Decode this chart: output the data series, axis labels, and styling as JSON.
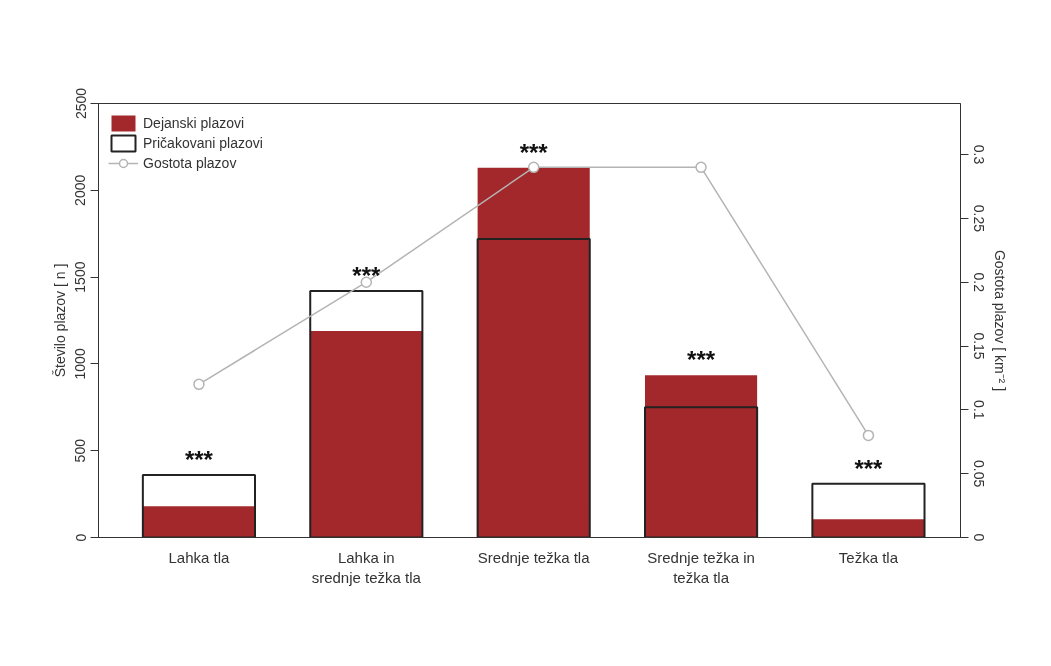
{
  "chart_data": {
    "type": "bar",
    "xlabel": null,
    "ylabel": "Število plazov [ n ]",
    "y2label": "Gostota plazov [ km⁻² ]",
    "categories": [
      "Lahka tla",
      "Lahka in\nsrednje težka tla",
      "Srednje težka tla",
      "Srednje težka in\ntežka tla",
      "Težka tla"
    ],
    "series": [
      {
        "name": "Dejanski plazovi",
        "color": "#a3282b",
        "values": [
          180,
          1190,
          2130,
          935,
          105
        ]
      },
      {
        "name": "Pričakovani plazovi",
        "color": "#222222",
        "values": [
          360,
          1420,
          1720,
          750,
          310
        ]
      },
      {
        "name": "Gostota plazov",
        "type": "line",
        "axis": "y2",
        "color": "#b4b4b4",
        "values": [
          0.12,
          0.2,
          0.29,
          0.29,
          0.08
        ]
      }
    ],
    "ylim": [
      0,
      2500
    ],
    "yticks": [
      0,
      500,
      1000,
      1500,
      2000,
      2500
    ],
    "y2lim": [
      0,
      0.34
    ],
    "y2ticks": [
      0,
      0.05,
      0.1,
      0.15,
      0.2,
      0.25,
      0.3
    ],
    "annotations": [
      {
        "text": "***",
        "x": "Lahka tla",
        "y": 370
      },
      {
        "text": "***",
        "x": "Lahka in\nsrednje težka tla",
        "y": 1430
      },
      {
        "text": "***",
        "x": "Srednje težka tla",
        "y": 2140
      },
      {
        "text": "***",
        "x": "Srednje težka in\ntežka tla",
        "y": 945
      },
      {
        "text": "***",
        "x": "Težka tla",
        "y": 320
      }
    ],
    "marker": "circle",
    "legend": "top left",
    "grid": false
  }
}
